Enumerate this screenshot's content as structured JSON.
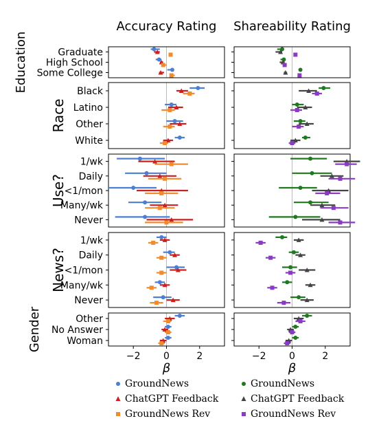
{
  "chart_data": {
    "type": "forest",
    "panels": [
      {
        "title": "Accuracy Rating",
        "xlim": [
          -3.5,
          3.5
        ],
        "xticks": [
          -2,
          0,
          2
        ],
        "xlabel": "β",
        "legend": [
          "GroundNews",
          "ChatGPT Feedback",
          "GroundNews Rev"
        ],
        "legend_colors": [
          "#4a7fd4",
          "#cc1f1f",
          "#f28a2e"
        ],
        "legend_markers": [
          "circle",
          "triangle",
          "square"
        ]
      },
      {
        "title": "Shareability Rating",
        "xlim": [
          -3.5,
          3.5
        ],
        "xticks": [
          -2,
          0,
          2
        ],
        "xlabel": "β",
        "legend": [
          "GroundNews",
          "ChatGPT Feedback",
          "GroundNews Rev"
        ],
        "legend_colors": [
          "#1f7a1f",
          "#444444",
          "#8a3bc4"
        ],
        "legend_markers": [
          "circle",
          "triangle",
          "square"
        ]
      }
    ],
    "groups": [
      {
        "name": "Education",
        "categories": [
          "Graduate",
          "High School",
          "Some College"
        ],
        "values": [
          [
            [
              [
                -0.75,
                -0.2,
                0.35
              ],
              [
                -0.55,
                -0.2,
                0.15
              ],
              [
                0.25,
                -0.05,
                0.1
              ]
            ],
            [
              [
                -0.6,
                -0.3,
                0.1
              ],
              [
                -0.7,
                -0.3,
                0.1
              ],
              [
                0.2,
                -0.05,
                0.1
              ]
            ]
          ],
          [
            [
              [
                -0.45,
                -0.2,
                0.15
              ],
              [
                -0.3,
                -0.1,
                0.1
              ],
              [
                -0.2,
                -0.1,
                0.2
              ]
            ],
            [
              [
                -0.5,
                -0.2,
                0.1
              ],
              [
                -0.55,
                -0.2,
                0.1
              ],
              [
                -0.45,
                -0.1,
                0.1
              ]
            ]
          ],
          [
            [
              [
                0.35,
                -0.3,
                0.1
              ],
              [
                -0.35,
                -0.1,
                0.2
              ],
              [
                0.3,
                -0.1,
                0.2
              ]
            ],
            [
              [
                0.5,
                -0.1,
                0.1
              ],
              [
                -0.4,
                -0.1,
                0.1
              ],
              [
                0.45,
                -0.1,
                0.1
              ]
            ]
          ]
        ]
      },
      {
        "name": "Race",
        "categories": [
          "Black",
          "Latino",
          "Other",
          "White"
        ],
        "values": [
          [
            [
              [
                1.9,
                -0.5,
                0.4
              ],
              [
                0.9,
                -0.3,
                0.4
              ],
              [
                1.4,
                -0.4,
                0.3
              ]
            ],
            [
              [
                1.9,
                -0.3,
                0.4
              ],
              [
                1.0,
                -0.6,
                0.5
              ],
              [
                1.5,
                -0.3,
                0.3
              ]
            ]
          ],
          [
            [
              [
                0.3,
                -0.4,
                0.3
              ],
              [
                0.6,
                -0.5,
                0.4
              ],
              [
                0.2,
                -0.5,
                0.3
              ]
            ],
            [
              [
                0.3,
                -0.3,
                0.4
              ],
              [
                0.8,
                -0.5,
                0.4
              ],
              [
                0.3,
                -0.4,
                0.3
              ]
            ]
          ],
          [
            [
              [
                0.5,
                -0.5,
                0.5
              ],
              [
                0.8,
                -0.6,
                0.4
              ],
              [
                0.2,
                -0.4,
                0.3
              ]
            ],
            [
              [
                0.5,
                -0.4,
                0.3
              ],
              [
                0.9,
                -0.5,
                0.4
              ],
              [
                0.4,
                -0.4,
                0.3
              ]
            ]
          ],
          [
            [
              [
                0.8,
                -0.3,
                0.3
              ],
              [
                0.1,
                -0.3,
                0.3
              ],
              [
                -0.1,
                -0.3,
                0.2
              ]
            ],
            [
              [
                0.8,
                -0.2,
                0.3
              ],
              [
                0.2,
                -0.3,
                0.3
              ],
              [
                0.0,
                -0.2,
                0.2
              ]
            ]
          ]
        ]
      },
      {
        "name": "Use?",
        "categories": [
          "1/wk",
          "Daily",
          "<1/mon",
          "Many/wk",
          "Never"
        ],
        "values": [
          [
            [
              [
                -1.6,
                -1.4,
                1.5
              ],
              [
                -0.7,
                -1.0,
                1.2
              ],
              [
                0.3,
                -1.0,
                1.0
              ]
            ],
            [
              [
                1.1,
                -1.2,
                1.0
              ],
              [
                3.3,
                -0.8,
                0.8
              ],
              [
                3.3,
                -0.7,
                0.6
              ]
            ]
          ],
          [
            [
              [
                -1.2,
                -1.3,
                1.2
              ],
              [
                -0.4,
                -1.0,
                1.0
              ],
              [
                -0.1,
                -1.0,
                1.0
              ]
            ],
            [
              [
                1.2,
                -1.2,
                1.2
              ],
              [
                2.4,
                -0.7,
                0.7
              ],
              [
                2.9,
                -0.7,
                0.9
              ]
            ]
          ],
          [
            [
              [
                -2.0,
                -1.5,
                1.4
              ],
              [
                -0.3,
                -1.5,
                1.6
              ],
              [
                -0.3,
                -1.0,
                1.0
              ]
            ],
            [
              [
                0.5,
                -1.3,
                1.0
              ],
              [
                2.2,
                -1.0,
                1.2
              ],
              [
                2.1,
                -0.7,
                0.8
              ]
            ]
          ],
          [
            [
              [
                -1.3,
                -1.0,
                1.0
              ],
              [
                -0.1,
                -0.9,
                0.8
              ],
              [
                -0.4,
                -0.9,
                0.9
              ]
            ],
            [
              [
                1.1,
                -1.0,
                1.1
              ],
              [
                1.8,
                -0.7,
                0.8
              ],
              [
                2.5,
                -0.8,
                0.9
              ]
            ]
          ],
          [
            [
              [
                -1.3,
                -1.8,
                1.5
              ],
              [
                0.3,
                -1.5,
                1.3
              ],
              [
                0.0,
                -1.3,
                1.0
              ]
            ],
            [
              [
                0.2,
                -1.6,
                1.5
              ],
              [
                1.8,
                -1.2,
                1.1
              ],
              [
                2.9,
                -0.7,
                0.9
              ]
            ]
          ]
        ]
      },
      {
        "name": "News?",
        "categories": [
          "1/wk",
          "Daily",
          "<1/mon",
          "Many/wk",
          "Never"
        ],
        "values": [
          [
            [
              [
                -0.3,
                -0.3,
                0.3
              ],
              [
                -0.1,
                -0.3,
                0.3
              ],
              [
                -0.8,
                -0.3,
                0.3
              ]
            ],
            [
              [
                -0.6,
                -0.4,
                0.3
              ],
              [
                0.4,
                -0.3,
                0.3
              ],
              [
                -1.9,
                -0.3,
                0.3
              ]
            ]
          ],
          [
            [
              [
                0.2,
                -0.4,
                0.3
              ],
              [
                0.5,
                -0.3,
                0.3
              ],
              [
                -0.3,
                -0.3,
                0.3
              ]
            ],
            [
              [
                0.1,
                -0.3,
                0.3
              ],
              [
                0.5,
                -0.3,
                0.3
              ],
              [
                -1.3,
                -0.3,
                0.3
              ]
            ]
          ],
          [
            [
              [
                0.6,
                -0.6,
                0.5
              ],
              [
                0.7,
                -0.5,
                0.5
              ],
              [
                -0.3,
                -0.3,
                0.3
              ]
            ],
            [
              [
                -0.1,
                -0.5,
                0.4
              ],
              [
                0.9,
                -0.5,
                0.5
              ],
              [
                -0.1,
                -0.3,
                0.3
              ]
            ]
          ],
          [
            [
              [
                -0.4,
                -0.3,
                0.3
              ],
              [
                -0.1,
                -0.3,
                0.3
              ],
              [
                -0.9,
                -0.3,
                0.3
              ]
            ],
            [
              [
                -0.3,
                -0.3,
                0.3
              ],
              [
                1.1,
                -0.3,
                0.3
              ],
              [
                -1.2,
                -0.3,
                0.3
              ]
            ]
          ],
          [
            [
              [
                -0.2,
                -0.6,
                0.5
              ],
              [
                0.4,
                -0.4,
                0.4
              ],
              [
                -0.6,
                -0.4,
                0.4
              ]
            ],
            [
              [
                0.4,
                -0.5,
                0.4
              ],
              [
                0.9,
                -0.4,
                0.4
              ],
              [
                -0.5,
                -0.4,
                0.4
              ]
            ]
          ]
        ]
      },
      {
        "name": "Gender",
        "categories": [
          "Other",
          "No Answer",
          "Woman"
        ],
        "values": [
          [
            [
              [
                0.8,
                -0.3,
                0.3
              ],
              [
                0.2,
                -0.3,
                0.3
              ],
              [
                0.1,
                -0.3,
                0.2
              ]
            ],
            [
              [
                0.9,
                -0.3,
                0.3
              ],
              [
                0.4,
                -0.3,
                0.3
              ],
              [
                0.5,
                -0.3,
                0.3
              ]
            ]
          ],
          [
            [
              [
                0.1,
                -0.2,
                0.2
              ],
              [
                -0.1,
                -0.2,
                0.2
              ],
              [
                0.1,
                -0.2,
                0.2
              ]
            ],
            [
              [
                0.2,
                -0.2,
                0.2
              ],
              [
                -0.1,
                -0.2,
                0.2
              ],
              [
                0.0,
                -0.2,
                0.2
              ]
            ]
          ],
          [
            [
              [
                0.1,
                -0.2,
                0.2
              ],
              [
                -0.2,
                -0.2,
                0.2
              ],
              [
                -0.3,
                -0.2,
                0.2
              ]
            ],
            [
              [
                0.2,
                -0.2,
                0.2
              ],
              [
                -0.2,
                -0.2,
                0.2
              ],
              [
                -0.3,
                -0.2,
                0.2
              ]
            ]
          ]
        ]
      }
    ]
  }
}
